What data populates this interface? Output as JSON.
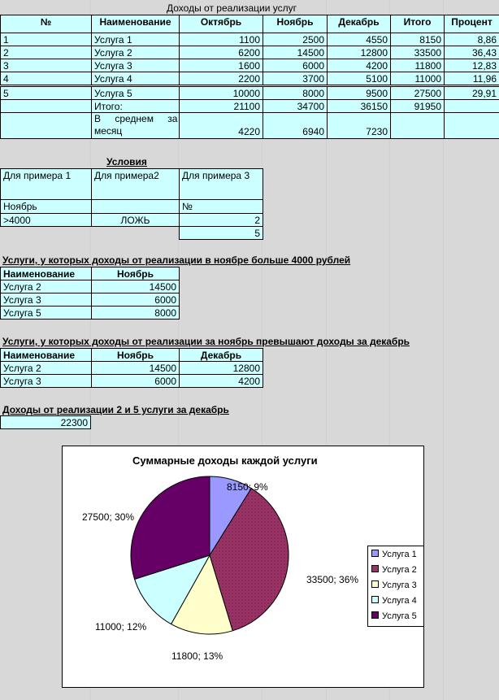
{
  "main_table": {
    "title": "Доходы от реализации услуг",
    "headers": [
      "№",
      "Наименование",
      "Октябрь",
      "Ноябрь",
      "Декабрь",
      "Итого",
      "Процент"
    ],
    "rows": [
      [
        "1",
        "Услуга 1",
        "1100",
        "2500",
        "4550",
        "8150",
        "8,86"
      ],
      [
        "2",
        "Услуга 2",
        "6200",
        "14500",
        "12800",
        "33500",
        "36,43"
      ],
      [
        "3",
        "Услуга 3",
        "1600",
        "6000",
        "4200",
        "11800",
        "12,83"
      ],
      [
        "4",
        "Услуга 4",
        "2200",
        "3700",
        "5100",
        "11000",
        "11,96"
      ],
      [
        "5",
        "Услуга 5",
        "10000",
        "8000",
        "9500",
        "27500",
        "29,91"
      ]
    ],
    "total_label": "Итого:",
    "totals": [
      "21100",
      "34700",
      "36150",
      "91950"
    ],
    "avg_label_1": "В среднем за",
    "avg_label_2": "месяц",
    "averages": [
      "4220",
      "6940",
      "7230"
    ]
  },
  "conditions": {
    "title": "Условия",
    "headers": [
      "Для примера 1",
      "Для примера2",
      "Для примера 3"
    ],
    "row1": [
      "Ноябрь",
      "",
      "№"
    ],
    "row2": [
      ">4000",
      "ЛОЖЬ",
      "2"
    ],
    "row3": [
      "",
      "",
      "5"
    ]
  },
  "filter1": {
    "title": "Услуги, у которых доходы от реализации в ноябре больше 4000 рублей",
    "headers": [
      "Наименование",
      "Ноябрь"
    ],
    "rows": [
      [
        "Услуга 2",
        "14500"
      ],
      [
        "Услуга 3",
        "6000"
      ],
      [
        "Услуга 5",
        "8000"
      ]
    ]
  },
  "filter2": {
    "title": "Услуги, у которых доходы от реализации за ноябрь превышают доходы за декабрь",
    "headers": [
      "Наименование",
      "Ноябрь",
      "Декабрь"
    ],
    "rows": [
      [
        "Услуга 2",
        "14500",
        "12800"
      ],
      [
        "Услуга 3",
        "6000",
        "4200"
      ]
    ]
  },
  "sum_block": {
    "title": "Доходы от реализации 2 и 5 услуги за декабрь",
    "value": "22300"
  },
  "chart_data": {
    "type": "pie",
    "title": "Суммарные доходы каждой услуги",
    "categories": [
      "Услуга 1",
      "Услуга 2",
      "Услуга 3",
      "Услуга 4",
      "Услуга 5"
    ],
    "values": [
      8150,
      33500,
      11800,
      11000,
      27500
    ],
    "labels": [
      "8150; 9%",
      "33500; 36%",
      "11800; 13%",
      "11000; 12%",
      "27500; 30%"
    ],
    "colors": [
      "#9999ff",
      "#993366",
      "#ffffcc",
      "#ccffff",
      "#660066"
    ],
    "legend": "right"
  }
}
